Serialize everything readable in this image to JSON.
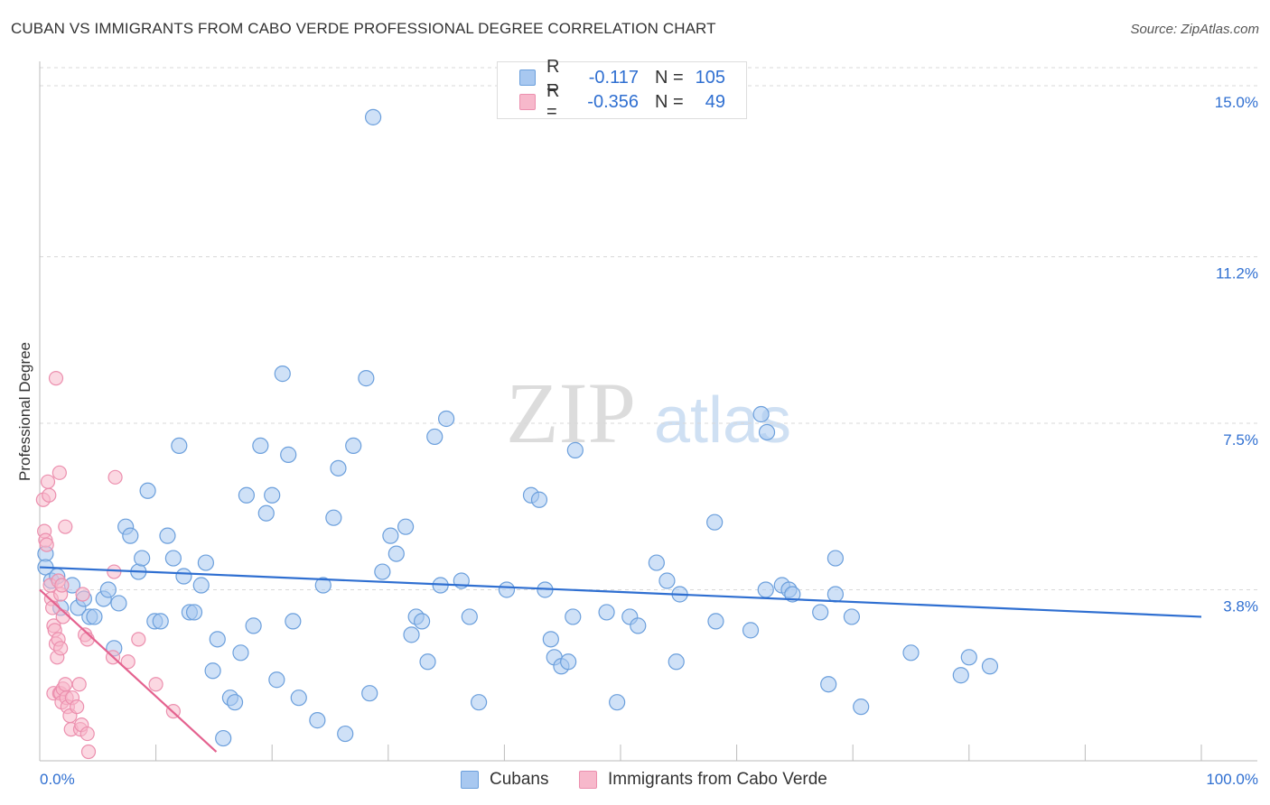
{
  "title": "CUBAN VS IMMIGRANTS FROM CABO VERDE PROFESSIONAL DEGREE CORRELATION CHART",
  "source": "Source: ZipAtlas.com",
  "watermark": {
    "zip": "ZIP",
    "atlas": "atlas"
  },
  "colors": {
    "cubans_fill": "#a8c8f0",
    "cubans_stroke": "#6b9fdc",
    "cubans_line": "#2f6fd1",
    "cabo_fill": "#f7b8cb",
    "cabo_stroke": "#ec8fae",
    "cabo_line": "#e4628f",
    "axis_text": "#2f6fd1",
    "grid": "#d8d8d8"
  },
  "legend": {
    "rows": [
      {
        "r_label": "R =",
        "r_value": "-0.117",
        "n_label": "N =",
        "n_value": "105"
      },
      {
        "r_label": "R =",
        "r_value": "-0.356",
        "n_label": "N =",
        "n_value": "49"
      }
    ]
  },
  "bottom_legend": {
    "cubans": "Cubans",
    "cabo": "Immigrants from Cabo Verde"
  },
  "chart_data": {
    "type": "scatter",
    "title": "CUBAN VS IMMIGRANTS FROM CABO VERDE PROFESSIONAL DEGREE CORRELATION CHART",
    "xlabel": "",
    "ylabel": "Professional Degree",
    "xlim": [
      0,
      100
    ],
    "ylim": [
      0,
      15.4
    ],
    "x_tick_labels": [
      {
        "value": 0,
        "label": "0.0%"
      },
      {
        "value": 100,
        "label": "100.0%"
      }
    ],
    "y_ticks": [
      {
        "value": 3.8,
        "label": "3.8%"
      },
      {
        "value": 7.5,
        "label": "7.5%"
      },
      {
        "value": 11.2,
        "label": "11.2%"
      },
      {
        "value": 15.0,
        "label": "15.0%"
      }
    ],
    "series": [
      {
        "name": "Cubans",
        "trend": {
          "x0": 0,
          "y0": 4.3,
          "x1": 100,
          "y1": 3.2
        },
        "points": [
          [
            0.5,
            4.6
          ],
          [
            0.5,
            4.3
          ],
          [
            1.0,
            4.0
          ],
          [
            1.5,
            4.1
          ],
          [
            1.8,
            3.4
          ],
          [
            2.8,
            3.9
          ],
          [
            3.3,
            3.4
          ],
          [
            3.8,
            3.6
          ],
          [
            4.3,
            3.2
          ],
          [
            4.7,
            3.2
          ],
          [
            5.5,
            3.6
          ],
          [
            5.9,
            3.8
          ],
          [
            6.4,
            2.5
          ],
          [
            6.8,
            3.5
          ],
          [
            7.4,
            5.2
          ],
          [
            7.8,
            5.0
          ],
          [
            8.5,
            4.2
          ],
          [
            8.8,
            4.5
          ],
          [
            9.3,
            6.0
          ],
          [
            9.9,
            3.1
          ],
          [
            10.4,
            3.1
          ],
          [
            11.0,
            5.0
          ],
          [
            11.5,
            4.5
          ],
          [
            12.0,
            7.0
          ],
          [
            12.4,
            4.1
          ],
          [
            12.9,
            3.3
          ],
          [
            13.3,
            3.3
          ],
          [
            13.9,
            3.9
          ],
          [
            14.3,
            4.4
          ],
          [
            14.9,
            2.0
          ],
          [
            15.3,
            2.7
          ],
          [
            15.8,
            0.5
          ],
          [
            16.4,
            1.4
          ],
          [
            16.8,
            1.3
          ],
          [
            17.3,
            2.4
          ],
          [
            17.8,
            5.9
          ],
          [
            18.4,
            3.0
          ],
          [
            19.0,
            7.0
          ],
          [
            19.5,
            5.5
          ],
          [
            20.0,
            5.9
          ],
          [
            20.4,
            1.8
          ],
          [
            20.9,
            8.6
          ],
          [
            21.4,
            6.8
          ],
          [
            21.8,
            3.1
          ],
          [
            22.3,
            1.4
          ],
          [
            23.9,
            0.9
          ],
          [
            24.4,
            3.9
          ],
          [
            25.3,
            5.4
          ],
          [
            25.7,
            6.5
          ],
          [
            26.3,
            0.6
          ],
          [
            27.0,
            7.0
          ],
          [
            28.1,
            8.5
          ],
          [
            28.4,
            1.5
          ],
          [
            28.7,
            14.3
          ],
          [
            29.5,
            4.2
          ],
          [
            30.2,
            5.0
          ],
          [
            30.7,
            4.6
          ],
          [
            31.5,
            5.2
          ],
          [
            32.0,
            2.8
          ],
          [
            32.4,
            3.2
          ],
          [
            32.9,
            3.1
          ],
          [
            33.4,
            2.2
          ],
          [
            34.0,
            7.2
          ],
          [
            35.0,
            7.6
          ],
          [
            34.5,
            3.9
          ],
          [
            36.3,
            4.0
          ],
          [
            37.0,
            3.2
          ],
          [
            37.8,
            1.3
          ],
          [
            40.2,
            3.8
          ],
          [
            42.3,
            5.9
          ],
          [
            43.0,
            5.8
          ],
          [
            43.5,
            3.8
          ],
          [
            44.0,
            2.7
          ],
          [
            44.3,
            2.3
          ],
          [
            44.9,
            2.1
          ],
          [
            45.5,
            2.2
          ],
          [
            46.1,
            6.9
          ],
          [
            45.9,
            3.2
          ],
          [
            48.8,
            3.3
          ],
          [
            49.7,
            1.3
          ],
          [
            50.8,
            3.2
          ],
          [
            51.5,
            3.0
          ],
          [
            53.1,
            4.4
          ],
          [
            54.0,
            4.0
          ],
          [
            54.8,
            2.2
          ],
          [
            55.1,
            3.7
          ],
          [
            58.1,
            5.3
          ],
          [
            58.2,
            3.1
          ],
          [
            61.2,
            2.9
          ],
          [
            62.1,
            7.7
          ],
          [
            62.6,
            7.3
          ],
          [
            62.5,
            3.8
          ],
          [
            63.9,
            3.9
          ],
          [
            64.5,
            3.8
          ],
          [
            64.8,
            3.7
          ],
          [
            67.2,
            3.3
          ],
          [
            67.9,
            1.7
          ],
          [
            68.5,
            4.5
          ],
          [
            68.5,
            3.7
          ],
          [
            69.9,
            3.2
          ],
          [
            70.7,
            1.2
          ],
          [
            75.0,
            2.4
          ],
          [
            79.3,
            1.9
          ],
          [
            80.0,
            2.3
          ],
          [
            81.8,
            2.1
          ]
        ]
      },
      {
        "name": "Immigrants from Cabo Verde",
        "trend": {
          "x0": 0,
          "y0": 3.8,
          "x1": 15.2,
          "y1": 0.2
        },
        "points": [
          [
            0.3,
            5.8
          ],
          [
            0.4,
            5.1
          ],
          [
            0.5,
            4.9
          ],
          [
            0.6,
            4.8
          ],
          [
            0.7,
            6.2
          ],
          [
            0.8,
            5.9
          ],
          [
            0.9,
            3.9
          ],
          [
            1.0,
            3.6
          ],
          [
            1.1,
            3.4
          ],
          [
            1.2,
            3.0
          ],
          [
            1.3,
            2.9
          ],
          [
            1.4,
            2.6
          ],
          [
            1.5,
            2.3
          ],
          [
            1.6,
            2.7
          ],
          [
            1.2,
            1.5
          ],
          [
            1.7,
            1.5
          ],
          [
            1.8,
            1.5
          ],
          [
            1.9,
            1.3
          ],
          [
            2.0,
            1.6
          ],
          [
            1.7,
            6.4
          ],
          [
            1.4,
            8.5
          ],
          [
            2.2,
            5.2
          ],
          [
            1.6,
            4.0
          ],
          [
            1.8,
            3.7
          ],
          [
            1.9,
            3.9
          ],
          [
            2.0,
            3.2
          ],
          [
            1.8,
            2.5
          ],
          [
            2.3,
            1.4
          ],
          [
            2.4,
            1.2
          ],
          [
            2.6,
            1.0
          ],
          [
            2.7,
            0.7
          ],
          [
            2.8,
            1.4
          ],
          [
            2.2,
            1.7
          ],
          [
            3.2,
            1.2
          ],
          [
            3.4,
            1.7
          ],
          [
            3.5,
            0.7
          ],
          [
            3.6,
            0.8
          ],
          [
            3.7,
            3.7
          ],
          [
            3.9,
            2.8
          ],
          [
            4.1,
            2.7
          ],
          [
            4.1,
            0.6
          ],
          [
            4.2,
            0.2
          ],
          [
            6.4,
            4.2
          ],
          [
            6.3,
            2.3
          ],
          [
            6.5,
            6.3
          ],
          [
            7.6,
            2.2
          ],
          [
            8.5,
            2.7
          ],
          [
            10.0,
            1.7
          ],
          [
            11.5,
            1.1
          ]
        ]
      }
    ]
  }
}
